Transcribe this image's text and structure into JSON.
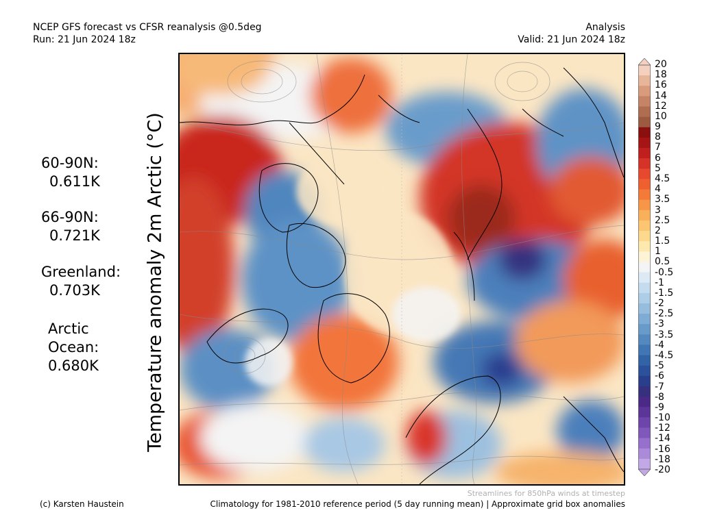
{
  "header": {
    "line1_left": "NCEP GFS forecast vs CFSR reanalysis @0.5deg",
    "line2_left": "Run: 21 Jun 2024 18z",
    "line1_right": "Analysis",
    "line2_right": "Valid: 21 Jun 2024 18z"
  },
  "axis_title": "Temperature anomaly 2m Arctic (°C)",
  "stats": [
    {
      "label": "60-90N:",
      "value": "0.611K"
    },
    {
      "label": "66-90N:",
      "value": "0.721K"
    },
    {
      "label": "Greenland:",
      "value": "0.703K"
    },
    {
      "label": "Arctic",
      "label2": "Ocean:",
      "value": "0.680K"
    }
  ],
  "colorbar": {
    "labels": [
      "20",
      "18",
      "16",
      "14",
      "12",
      "10",
      "9",
      "8",
      "7",
      "6",
      "5",
      "4.5",
      "4",
      "3.5",
      "3",
      "2.5",
      "2",
      "1.5",
      "1",
      "0.5",
      "-0.5",
      "-1",
      "-1.5",
      "-2",
      "-2.5",
      "-3",
      "-3.5",
      "-4",
      "-4.5",
      "-5",
      "-6",
      "-7",
      "-8",
      "-9",
      "-10",
      "-12",
      "-14",
      "-16",
      "-18",
      "-20"
    ],
    "colors": [
      "#f3d0bf",
      "#e6b59a",
      "#d89c7c",
      "#c58466",
      "#b06e50",
      "#9c5a40",
      "#8b0f0f",
      "#a51515",
      "#c01f1f",
      "#d63328",
      "#e6492e",
      "#ef6030",
      "#f47a3a",
      "#f79648",
      "#f9b05b",
      "#fbc572",
      "#fcd98c",
      "#fde8ad",
      "#fdf4d8",
      "#f4f4f4",
      "#dbeaf5",
      "#c5dcee",
      "#aecde6",
      "#96bddd",
      "#7eacd4",
      "#689bca",
      "#5389bf",
      "#4076b3",
      "#3263a6",
      "#2a5199",
      "#2a3f8c",
      "#36307f",
      "#4a2a86",
      "#5c3598",
      "#6e45ab",
      "#8058bc",
      "#9570cc",
      "#aa8ad9",
      "#c2a8e6"
    ]
  },
  "footer": {
    "note": "Streamlines for 850hPa winds at timestep",
    "credit": "(c) Karsten Haustein",
    "climatology": "Climatology for 1981-2010 reference period (5 day running mean) | Approximate grid box anomalies"
  }
}
